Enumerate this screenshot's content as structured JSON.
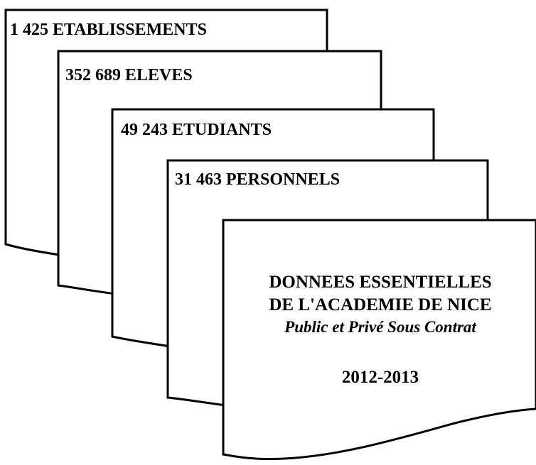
{
  "sheets": {
    "etablissements": "1 425 ETABLISSEMENTS",
    "eleves": "352 689 ELEVES",
    "etudiants": "49 243 ETUDIANTS",
    "personnels": "31 463 PERSONNELS"
  },
  "cover": {
    "title_line1": "DONNEES ESSENTIELLES",
    "title_line2": "DE L'ACADEMIE DE NICE",
    "subtitle": "Public et Privé Sous Contrat",
    "years": "2012-2013"
  }
}
